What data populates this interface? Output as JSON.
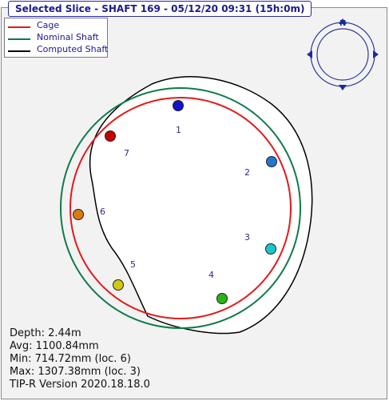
{
  "title": "Selected Slice - SHAFT 169 - 05/12/20 09:31 (15h:0m)",
  "legend": {
    "items": [
      {
        "label": "Cage",
        "color": "#e31a1a"
      },
      {
        "label": "Nominal Shaft",
        "color": "#0f7a4a"
      },
      {
        "label": "Computed Shaft",
        "color": "#000000"
      }
    ]
  },
  "compass": {
    "label": "N"
  },
  "points": [
    {
      "label": "1",
      "color": "#1414c8"
    },
    {
      "label": "2",
      "color": "#1e78d2"
    },
    {
      "label": "3",
      "color": "#18c8c8"
    },
    {
      "label": "4",
      "color": "#28b414"
    },
    {
      "label": "5",
      "color": "#d2c814"
    },
    {
      "label": "6",
      "color": "#dc7814"
    },
    {
      "label": "7",
      "color": "#c80000"
    }
  ],
  "info": {
    "depth": "Depth: 2.44m",
    "avg": "Avg: 1100.84mm",
    "min": "Min: 714.72mm (loc. 6)",
    "max": "Max: 1307.38mm (loc. 3)",
    "version": "TIP-R Version 2020.18.18.0"
  }
}
